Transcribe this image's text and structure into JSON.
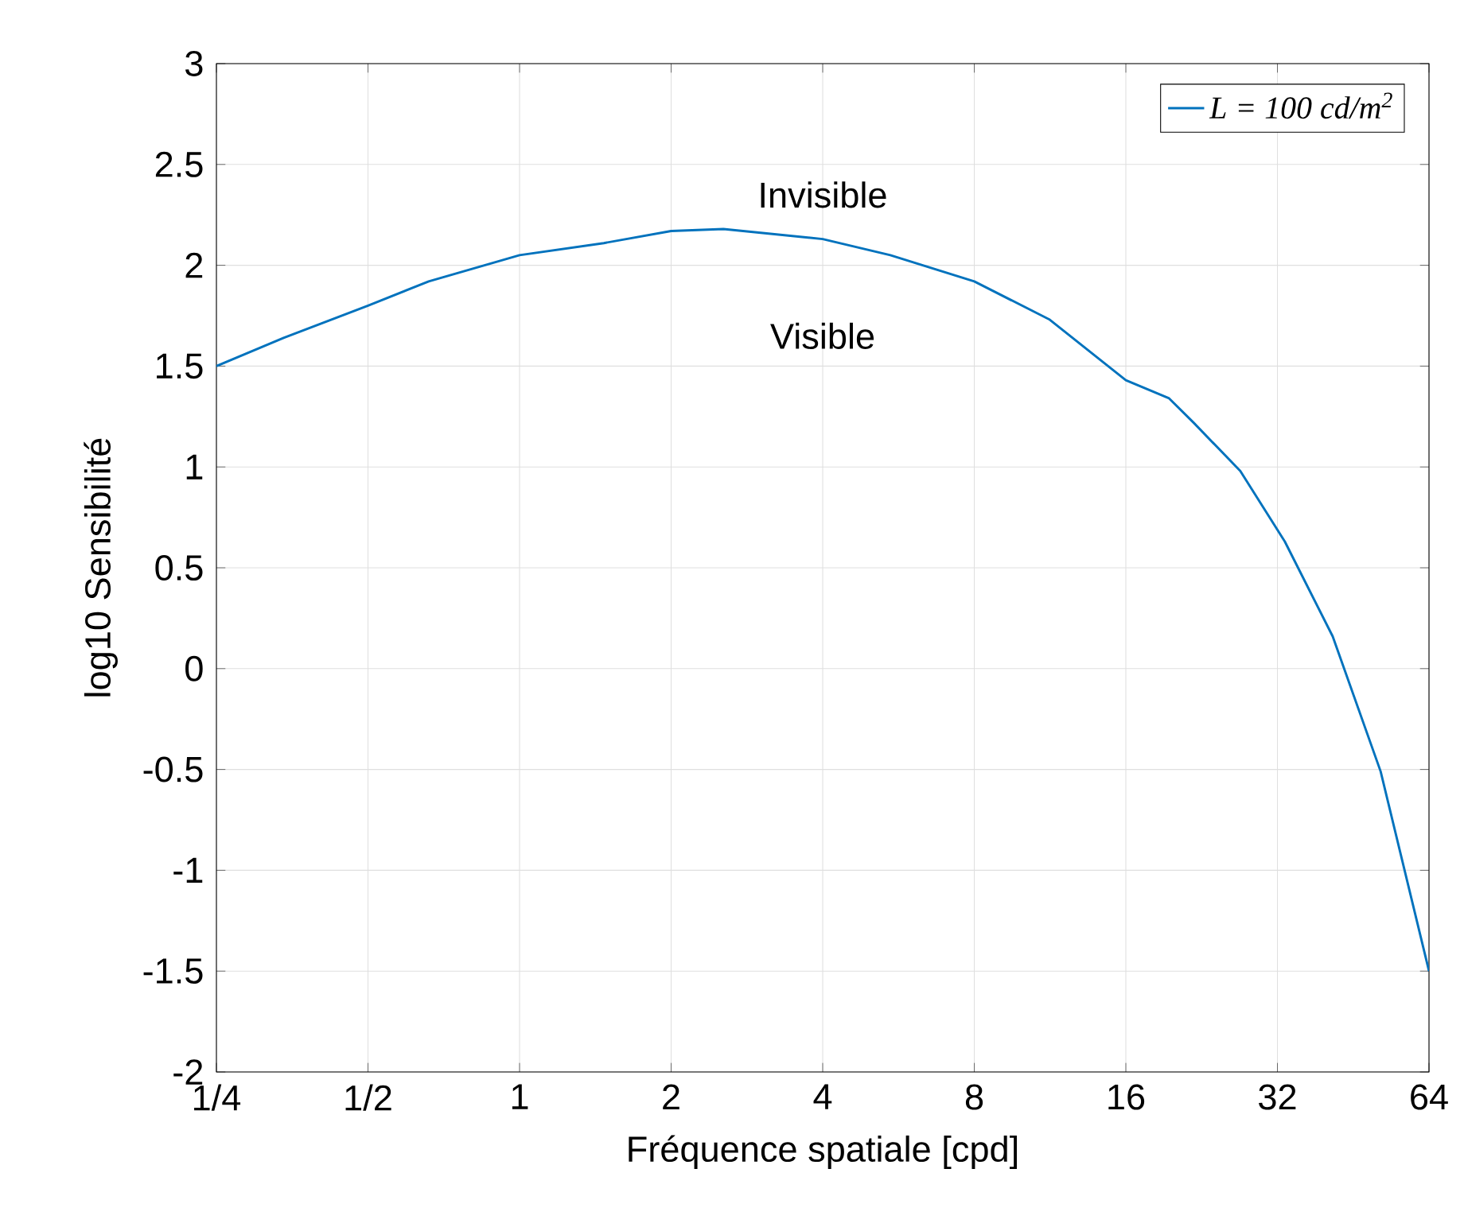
{
  "chart_data": {
    "type": "line",
    "xlabel": "Fréquence spatiale [cpd]",
    "ylabel": "log10 Sensibilité",
    "annotations": [
      "Invisible",
      "Visible"
    ],
    "series": [
      {
        "name": "L = 100 cd/m$^{2}$",
        "color": "#0072bd",
        "x": [
          0.25,
          0.34,
          0.5,
          0.66,
          1,
          1.47,
          2,
          2.54,
          4,
          5.45,
          8,
          11.3,
          16,
          19.5,
          21.8,
          27.0,
          33.1,
          41.2,
          51.3,
          64
        ],
        "values": [
          1.5,
          1.64,
          1.8,
          1.92,
          2.05,
          2.11,
          2.17,
          2.18,
          2.13,
          2.05,
          1.92,
          1.73,
          1.43,
          1.34,
          1.22,
          0.98,
          0.63,
          0.16,
          -0.51,
          -1.5
        ]
      }
    ],
    "log": "x",
    "xlim": [
      0.25,
      64
    ],
    "ylim": [
      -2,
      3
    ],
    "xticks": [
      {
        "value": 0.25,
        "label": "1/4"
      },
      {
        "value": 0.5,
        "label": "1/2"
      },
      1,
      2,
      4,
      8,
      16,
      32,
      64
    ],
    "yticks": [
      -2,
      -1.5,
      -1,
      -0.5,
      0,
      0.5,
      1,
      1.5,
      2,
      2.5,
      3
    ],
    "grid": true,
    "legend": "top right",
    "marker": "none",
    "line_style": "solid"
  }
}
